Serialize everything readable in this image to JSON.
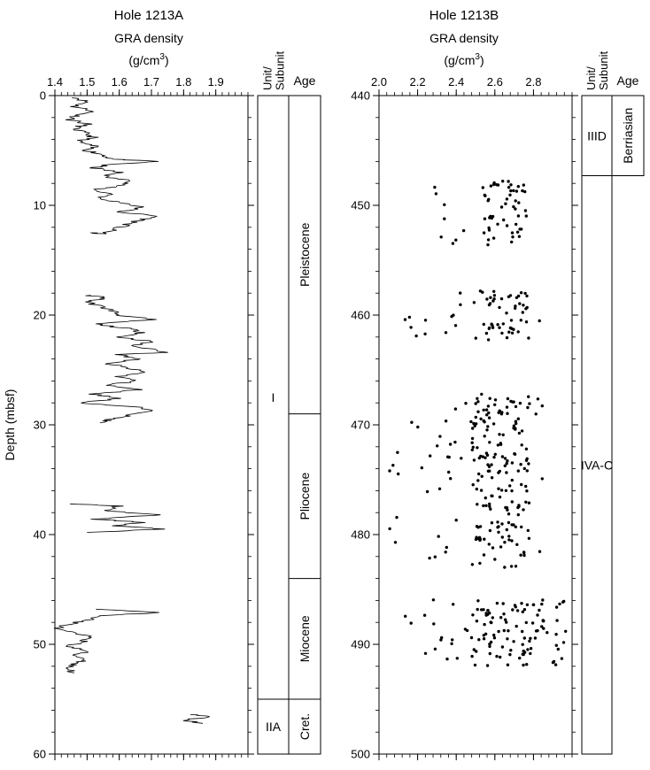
{
  "chart_data": [
    {
      "type": "line",
      "title": "Hole 1213A",
      "xlabel": "GRA density",
      "xunit": "(g/cm",
      "xunit_sup": "3",
      "xunit_close": ")",
      "ylabel": "Depth (mbsf)",
      "xlim": [
        1.4,
        2.0
      ],
      "ylim": [
        0,
        60
      ],
      "y_inverted": true,
      "x_tick_labels": [
        "1.4",
        "1.5",
        "1.6",
        "1.7",
        "1.8",
        "1.9"
      ],
      "x_ticks": [
        1.4,
        1.5,
        1.6,
        1.7,
        1.8,
        1.9
      ],
      "y_tick_labels": [
        "0",
        "10",
        "20",
        "30",
        "40",
        "50",
        "60"
      ],
      "y_ticks": [
        0,
        10,
        20,
        30,
        40,
        50,
        60
      ],
      "series": [
        {
          "segments": [
            [
              [
                1.47,
                0.2
              ],
              [
                1.5,
                0.6
              ],
              [
                1.46,
                1.0
              ],
              [
                1.52,
                1.4
              ],
              [
                1.47,
                1.8
              ],
              [
                1.45,
                2.2
              ],
              [
                1.5,
                2.6
              ],
              [
                1.46,
                3.0
              ],
              [
                1.49,
                3.4
              ],
              [
                1.52,
                3.8
              ],
              [
                1.47,
                4.2
              ],
              [
                1.52,
                4.6
              ],
              [
                1.5,
                5.0
              ],
              [
                1.55,
                5.4
              ],
              [
                1.58,
                5.8
              ],
              [
                1.72,
                6.0
              ],
              [
                1.56,
                6.3
              ],
              [
                1.52,
                6.6
              ],
              [
                1.6,
                7.0
              ],
              [
                1.55,
                7.4
              ],
              [
                1.65,
                7.8
              ],
              [
                1.6,
                8.2
              ],
              [
                1.52,
                8.6
              ],
              [
                1.58,
                9.0
              ],
              [
                1.53,
                9.4
              ],
              [
                1.62,
                9.8
              ],
              [
                1.67,
                10.2
              ],
              [
                1.6,
                10.6
              ],
              [
                1.72,
                11.0
              ],
              [
                1.66,
                11.4
              ],
              [
                1.62,
                11.8
              ],
              [
                1.58,
                12.2
              ],
              [
                1.55,
                12.6
              ],
              [
                1.51,
                12.5
              ]
            ],
            [
              [
                1.5,
                18.2
              ],
              [
                1.56,
                18.4
              ],
              [
                1.5,
                18.8
              ],
              [
                1.54,
                19.2
              ],
              [
                1.58,
                19.6
              ],
              [
                1.6,
                20.0
              ],
              [
                1.7,
                20.4
              ],
              [
                1.52,
                20.8
              ],
              [
                1.62,
                21.2
              ],
              [
                1.68,
                21.6
              ],
              [
                1.6,
                22.0
              ],
              [
                1.7,
                22.4
              ],
              [
                1.64,
                22.8
              ],
              [
                1.75,
                23.4
              ],
              [
                1.6,
                23.6
              ],
              [
                1.66,
                24.0
              ],
              [
                1.56,
                24.4
              ],
              [
                1.62,
                24.8
              ],
              [
                1.68,
                25.2
              ],
              [
                1.6,
                25.6
              ],
              [
                1.65,
                26.0
              ],
              [
                1.56,
                26.4
              ],
              [
                1.66,
                26.8
              ],
              [
                1.52,
                27.2
              ],
              [
                1.6,
                27.6
              ],
              [
                1.48,
                28.0
              ],
              [
                1.66,
                28.4
              ],
              [
                1.7,
                28.8
              ],
              [
                1.62,
                29.2
              ],
              [
                1.56,
                29.6
              ],
              [
                1.54,
                29.8
              ]
            ],
            [
              [
                1.45,
                37.2
              ],
              [
                1.6,
                37.4
              ],
              [
                1.55,
                37.8
              ],
              [
                1.72,
                38.2
              ],
              [
                1.52,
                38.6
              ],
              [
                1.68,
                38.9
              ],
              [
                1.58,
                39.2
              ],
              [
                1.74,
                39.5
              ],
              [
                1.5,
                39.8
              ]
            ],
            [
              [
                1.54,
                46.8
              ],
              [
                1.72,
                47.1
              ],
              [
                1.55,
                47.4
              ],
              [
                1.5,
                47.8
              ],
              [
                1.44,
                48.2
              ],
              [
                1.4,
                48.6
              ],
              [
                1.46,
                49.0
              ],
              [
                1.52,
                49.4
              ],
              [
                1.48,
                49.8
              ],
              [
                1.44,
                50.2
              ],
              [
                1.5,
                50.6
              ],
              [
                1.46,
                51.0
              ],
              [
                1.5,
                51.4
              ],
              [
                1.46,
                51.8
              ],
              [
                1.44,
                52.2
              ],
              [
                1.46,
                52.6
              ]
            ],
            [
              [
                1.82,
                56.4
              ],
              [
                1.88,
                56.6
              ],
              [
                1.8,
                56.9
              ],
              [
                1.86,
                57.2
              ]
            ]
          ]
        }
      ],
      "columns": {
        "unit_header": "Unit/ Subunit",
        "unit_header_lines": [
          "Unit/",
          "Subunit"
        ],
        "age_header": "Age",
        "units": [
          {
            "label": "I",
            "top": 0,
            "bottom": 55
          },
          {
            "label": "IIA",
            "top": 55,
            "bottom": 60
          }
        ],
        "ages": [
          {
            "label": "Pleistocene",
            "top": 0,
            "bottom": 29
          },
          {
            "label": "Pliocene",
            "top": 29,
            "bottom": 44
          },
          {
            "label": "Miocene",
            "top": 44,
            "bottom": 55
          },
          {
            "label": "Cret.",
            "top": 55,
            "bottom": 60
          }
        ]
      }
    },
    {
      "type": "scatter",
      "title": "Hole 1213B",
      "xlabel": "GRA density",
      "xunit": "(g/cm",
      "xunit_sup": "3",
      "xunit_close": ")",
      "xlim": [
        2.0,
        3.0
      ],
      "ylim": [
        440,
        500
      ],
      "y_inverted": true,
      "x_tick_labels": [
        "2.0",
        "2.2",
        "2.4",
        "2.6",
        "2.8"
      ],
      "x_ticks": [
        2.0,
        2.2,
        2.4,
        2.6,
        2.8
      ],
      "y_tick_labels": [
        "440",
        "450",
        "460",
        "470",
        "480",
        "490",
        "500"
      ],
      "y_ticks": [
        440,
        450,
        460,
        470,
        480,
        490,
        500
      ],
      "clusters": [
        {
          "x_range": [
            2.14,
            2.81
          ],
          "y_range": [
            447.8,
            453.8
          ],
          "core_x": [
            2.53,
            2.78
          ],
          "count": 62
        },
        {
          "x_range": [
            2.12,
            2.92
          ],
          "y_range": [
            457.8,
            462.4
          ],
          "core_x": [
            2.5,
            2.78
          ],
          "count": 65
        },
        {
          "x_range": [
            2.04,
            2.85
          ],
          "y_range": [
            467.2,
            483.0
          ],
          "core_x": [
            2.48,
            2.78
          ],
          "count": 215
        },
        {
          "x_range": [
            2.12,
            2.97
          ],
          "y_range": [
            485.8,
            492.0
          ],
          "core_x": [
            2.48,
            2.97
          ],
          "count": 120
        }
      ],
      "columns": {
        "unit_header": "Unit/ Subunit",
        "unit_header_lines": [
          "Unit/",
          "Subunit"
        ],
        "age_header": "Age",
        "units": [
          {
            "label": "IIID",
            "top": 440,
            "bottom": 447.3
          },
          {
            "label": "IVA-C",
            "top": 447.3,
            "bottom": 500
          }
        ],
        "ages": [
          {
            "label": "Berriasian",
            "top": 440,
            "bottom": 447.3
          }
        ]
      }
    }
  ]
}
